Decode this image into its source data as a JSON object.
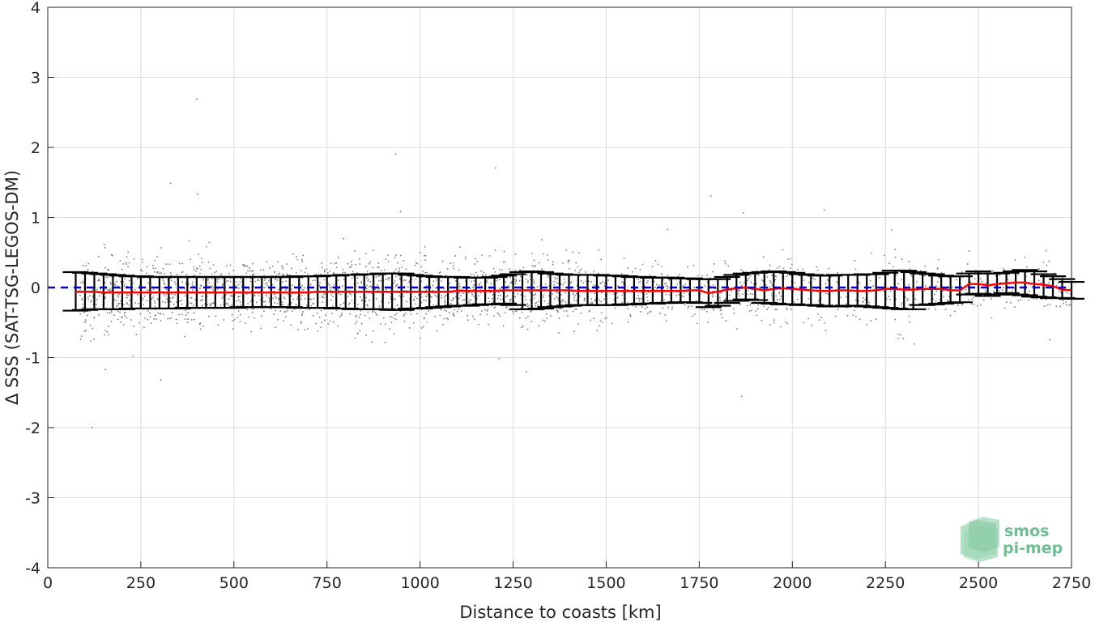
{
  "chart_data": {
    "type": "scatter",
    "title": "",
    "xlabel": "Distance to coasts [km]",
    "ylabel": "Δ SSS (SAT-TSG-LEGOS-DM)",
    "xlim": [
      0,
      2750
    ],
    "ylim": [
      -4,
      4
    ],
    "x_ticks": [
      0,
      250,
      500,
      750,
      1000,
      1250,
      1500,
      1750,
      2000,
      2250,
      2500,
      2750
    ],
    "y_ticks": [
      -4,
      -3,
      -2,
      -1,
      0,
      1,
      2,
      3,
      4
    ],
    "grid": true,
    "colors": {
      "scatter": "#808080",
      "mean_line": "#ff0000",
      "zero_line": "#0000cc",
      "error_bars": "#000000",
      "logo_text": "#6fbf92",
      "logo_shape": "#8fd0a8"
    },
    "zero_reference": {
      "name": "zero line",
      "style": "dashed",
      "y": 0
    },
    "scatter_cloud": {
      "note": "dense raw differences; main band approx",
      "x_range": [
        85,
        2750
      ],
      "y_center": -0.05
    },
    "binned_stats": {
      "x": [
        75,
        100,
        125,
        150,
        175,
        200,
        225,
        250,
        275,
        300,
        325,
        350,
        375,
        400,
        425,
        450,
        475,
        500,
        525,
        550,
        575,
        600,
        625,
        650,
        675,
        700,
        725,
        750,
        775,
        800,
        825,
        850,
        875,
        900,
        925,
        950,
        975,
        1000,
        1025,
        1050,
        1075,
        1100,
        1125,
        1150,
        1175,
        1200,
        1225,
        1250,
        1275,
        1300,
        1325,
        1350,
        1375,
        1400,
        1425,
        1450,
        1475,
        1500,
        1525,
        1550,
        1575,
        1600,
        1625,
        1650,
        1675,
        1700,
        1725,
        1750,
        1775,
        1800,
        1825,
        1850,
        1875,
        1900,
        1925,
        1950,
        1975,
        2000,
        2025,
        2050,
        2075,
        2100,
        2125,
        2150,
        2175,
        2200,
        2225,
        2250,
        2275,
        2300,
        2325,
        2350,
        2375,
        2400,
        2425,
        2450,
        2475,
        2500,
        2525,
        2550,
        2575,
        2600,
        2625,
        2650,
        2675,
        2700,
        2725,
        2750
      ],
      "mean": [
        -0.06,
        -0.06,
        -0.06,
        -0.07,
        -0.07,
        -0.07,
        -0.07,
        -0.07,
        -0.07,
        -0.07,
        -0.07,
        -0.07,
        -0.07,
        -0.07,
        -0.07,
        -0.07,
        -0.07,
        -0.07,
        -0.07,
        -0.07,
        -0.07,
        -0.07,
        -0.07,
        -0.07,
        -0.07,
        -0.07,
        -0.06,
        -0.06,
        -0.06,
        -0.06,
        -0.06,
        -0.06,
        -0.06,
        -0.06,
        -0.06,
        -0.06,
        -0.06,
        -0.06,
        -0.06,
        -0.06,
        -0.06,
        -0.05,
        -0.05,
        -0.05,
        -0.05,
        -0.05,
        -0.04,
        -0.04,
        -0.04,
        -0.04,
        -0.04,
        -0.04,
        -0.04,
        -0.04,
        -0.05,
        -0.05,
        -0.05,
        -0.05,
        -0.05,
        -0.05,
        -0.05,
        -0.05,
        -0.05,
        -0.05,
        -0.05,
        -0.05,
        -0.04,
        -0.04,
        -0.08,
        -0.06,
        -0.03,
        -0.01,
        0.0,
        -0.02,
        -0.04,
        -0.02,
        -0.01,
        -0.02,
        -0.03,
        -0.04,
        -0.05,
        -0.05,
        -0.04,
        -0.04,
        -0.05,
        -0.05,
        -0.04,
        -0.02,
        -0.02,
        -0.03,
        -0.03,
        -0.02,
        -0.02,
        -0.02,
        -0.04,
        -0.04,
        0.05,
        0.05,
        0.03,
        0.05,
        0.06,
        0.07,
        0.07,
        0.05,
        0.04,
        0.02,
        -0.03,
        -0.04
      ],
      "std_low": [
        -0.33,
        -0.32,
        -0.31,
        -0.31,
        -0.31,
        -0.31,
        -0.3,
        -0.3,
        -0.3,
        -0.3,
        -0.3,
        -0.3,
        -0.29,
        -0.29,
        -0.29,
        -0.29,
        -0.29,
        -0.29,
        -0.28,
        -0.28,
        -0.28,
        -0.28,
        -0.28,
        -0.28,
        -0.29,
        -0.29,
        -0.29,
        -0.29,
        -0.3,
        -0.3,
        -0.31,
        -0.31,
        -0.31,
        -0.31,
        -0.32,
        -0.32,
        -0.3,
        -0.3,
        -0.29,
        -0.28,
        -0.27,
        -0.26,
        -0.26,
        -0.25,
        -0.24,
        -0.24,
        -0.23,
        -0.25,
        -0.31,
        -0.31,
        -0.3,
        -0.28,
        -0.27,
        -0.26,
        -0.25,
        -0.25,
        -0.25,
        -0.25,
        -0.25,
        -0.24,
        -0.24,
        -0.23,
        -0.23,
        -0.22,
        -0.22,
        -0.21,
        -0.21,
        -0.22,
        -0.28,
        -0.26,
        -0.22,
        -0.19,
        -0.17,
        -0.18,
        -0.22,
        -0.23,
        -0.24,
        -0.24,
        -0.25,
        -0.25,
        -0.26,
        -0.27,
        -0.27,
        -0.26,
        -0.26,
        -0.27,
        -0.28,
        -0.29,
        -0.3,
        -0.31,
        -0.31,
        -0.25,
        -0.24,
        -0.23,
        -0.22,
        -0.21,
        -0.1,
        -0.09,
        -0.12,
        -0.1,
        -0.08,
        -0.1,
        -0.11,
        -0.13,
        -0.14,
        -0.15,
        -0.15,
        -0.16
      ],
      "std_high": [
        0.22,
        0.21,
        0.2,
        0.19,
        0.18,
        0.17,
        0.16,
        0.16,
        0.15,
        0.15,
        0.15,
        0.15,
        0.15,
        0.15,
        0.15,
        0.15,
        0.15,
        0.15,
        0.15,
        0.15,
        0.15,
        0.15,
        0.15,
        0.15,
        0.16,
        0.16,
        0.16,
        0.17,
        0.17,
        0.18,
        0.18,
        0.19,
        0.19,
        0.2,
        0.2,
        0.2,
        0.18,
        0.17,
        0.16,
        0.15,
        0.15,
        0.15,
        0.14,
        0.14,
        0.14,
        0.15,
        0.17,
        0.19,
        0.22,
        0.23,
        0.22,
        0.2,
        0.19,
        0.18,
        0.18,
        0.18,
        0.18,
        0.17,
        0.17,
        0.16,
        0.15,
        0.15,
        0.14,
        0.14,
        0.14,
        0.13,
        0.13,
        0.12,
        0.12,
        0.12,
        0.15,
        0.18,
        0.2,
        0.21,
        0.22,
        0.23,
        0.22,
        0.21,
        0.19,
        0.18,
        0.17,
        0.17,
        0.18,
        0.18,
        0.18,
        0.19,
        0.19,
        0.21,
        0.24,
        0.24,
        0.22,
        0.2,
        0.19,
        0.17,
        0.16,
        0.16,
        0.2,
        0.23,
        0.2,
        0.2,
        0.21,
        0.23,
        0.25,
        0.23,
        0.19,
        0.16,
        0.12,
        0.08
      ]
    }
  },
  "logo": {
    "line1": "smos",
    "line2": "pi-mep"
  }
}
